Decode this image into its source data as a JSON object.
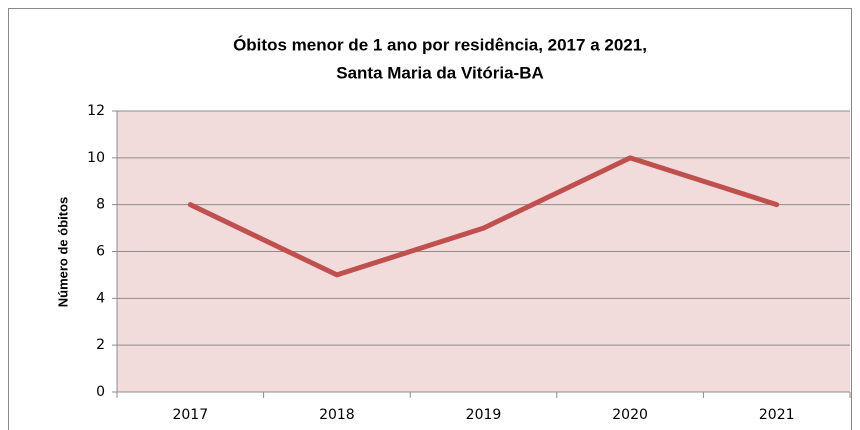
{
  "chart_data": {
    "type": "line",
    "title": [
      "Óbitos menor de 1 ano por residência, 2017 a 2021,",
      "Santa Maria da Vitória-BA"
    ],
    "y_label": "Número de óbitos",
    "categories": [
      "2017",
      "2018",
      "2019",
      "2020",
      "2021"
    ],
    "values": [
      8,
      5,
      7,
      10,
      8
    ],
    "color": "#c0504d",
    "ylim": [
      0,
      12
    ],
    "yticks": [
      0,
      2,
      4,
      6,
      8,
      10,
      12
    ],
    "grid": true
  }
}
